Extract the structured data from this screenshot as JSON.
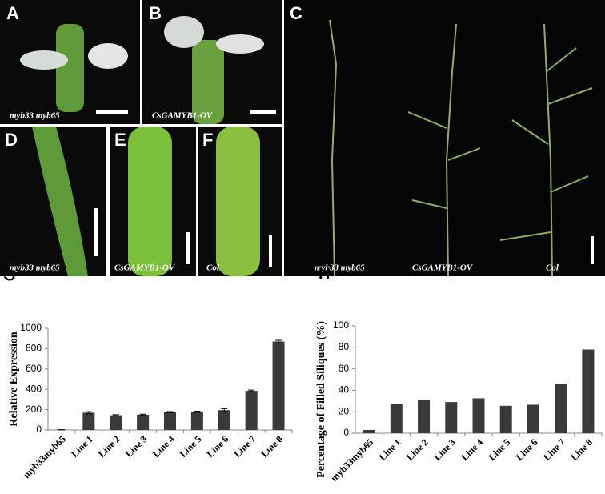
{
  "panels": [
    {
      "letter": "A",
      "caption": "myb33 myb65"
    },
    {
      "letter": "B",
      "caption": "CsGAMYB1-OV"
    },
    {
      "letter": "C",
      "captions": [
        "myb33 myb65",
        "CsGAMYB1-OV",
        "Col"
      ]
    },
    {
      "letter": "D",
      "caption": "myb33 myb65"
    },
    {
      "letter": "E",
      "caption": "CsGAMYB1-OV"
    },
    {
      "letter": "F",
      "caption": "Col"
    }
  ],
  "chart_data": [
    {
      "type": "bar",
      "panel_label": "G",
      "y_label": "Relative Expression",
      "categories": [
        "myb33myb65",
        "Line 1",
        "Line 2",
        "Line 3",
        "Line 4",
        "Line 5",
        "Line 6",
        "Line 7",
        "Line 8"
      ],
      "values": [
        2,
        170,
        145,
        150,
        175,
        180,
        195,
        385,
        870
      ],
      "errors": [
        1,
        10,
        6,
        6,
        6,
        5,
        15,
        8,
        12
      ],
      "color": "#3a3a3a",
      "ylim": [
        0,
        1000
      ],
      "yticks": [
        0,
        200,
        400,
        600,
        800,
        1000
      ]
    },
    {
      "type": "bar",
      "panel_label": "H",
      "y_label": "Percentage of Filled Siliques (%)",
      "categories": [
        "myb33myb65",
        "Line 1",
        "Line 2",
        "Line 3",
        "Line 4",
        "Line 5",
        "Line 6",
        "Line 7",
        "Line 8"
      ],
      "values": [
        3,
        27,
        31,
        29,
        32.5,
        25.5,
        26.5,
        46,
        78
      ],
      "color": "#3a3a3a",
      "ylim": [
        0,
        100
      ],
      "yticks": [
        0,
        20,
        40,
        60,
        80,
        100
      ]
    }
  ]
}
